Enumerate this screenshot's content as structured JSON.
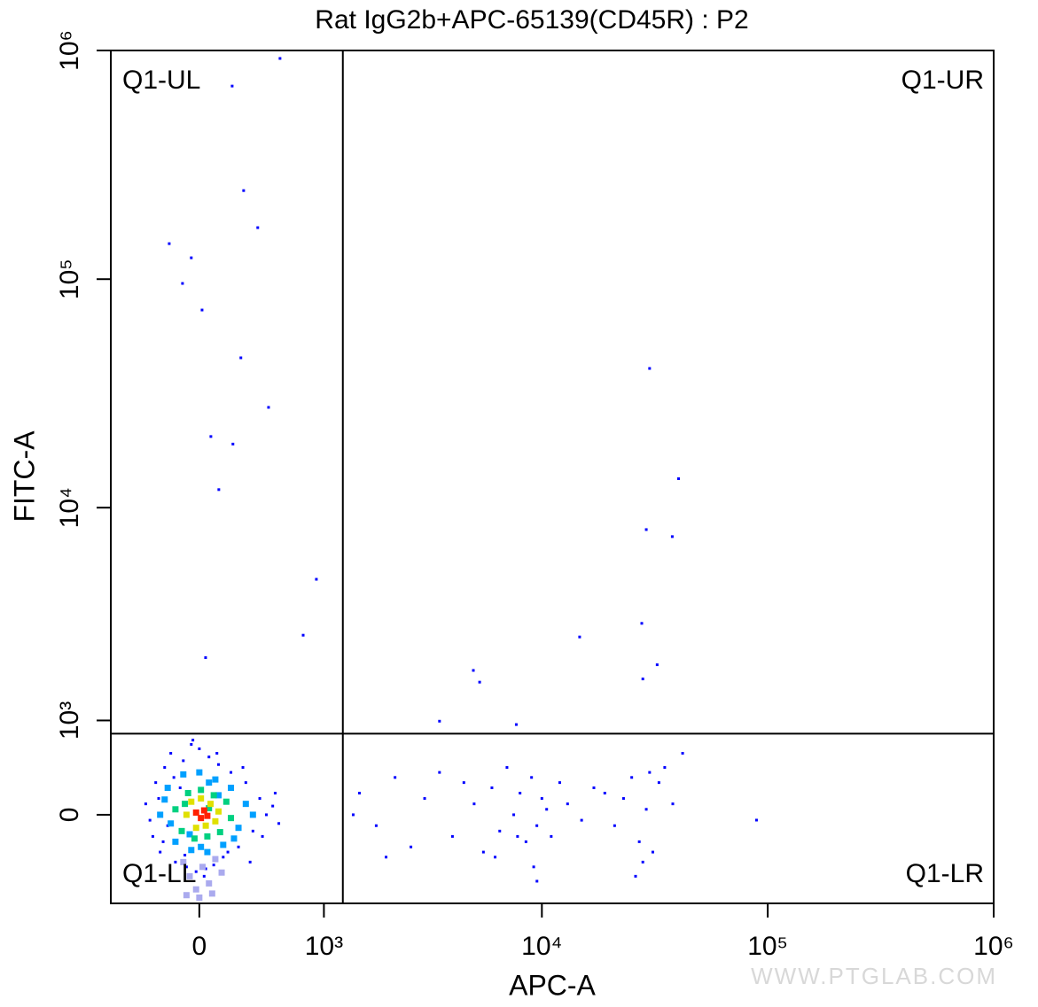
{
  "chart_data": {
    "type": "scatter",
    "title": "Rat IgG2b+APC-65139(CD45R) : P2",
    "x_label": "APC-A",
    "y_label": "FITC-A",
    "watermark": "WWW.PTGLAB.COM",
    "xscale": "biexponential",
    "yscale": "biexponential",
    "xlim": [
      -628,
      1000000
    ],
    "ylim": [
      -924,
      1000000
    ],
    "xticks": [
      0,
      {
        "value": 1000,
        "label": "10³"
      },
      {
        "value": 10000,
        "label": "10⁴"
      },
      {
        "value": 100000,
        "label": "10⁵"
      },
      {
        "value": 1000000,
        "label": "10⁶"
      }
    ],
    "yticks": [
      0,
      {
        "value": 1000,
        "label": "10³"
      },
      {
        "value": 10000,
        "label": "10⁴"
      },
      {
        "value": 100000,
        "label": "10⁵"
      },
      {
        "value": 1000000,
        "label": "10⁶"
      }
    ],
    "gate": {
      "x": 1246,
      "y": 829
    },
    "quadrants": {
      "ul": "Q1-UL",
      "ur": "Q1-UR",
      "ll": "Q1-LL",
      "lr": "Q1-LR"
    },
    "series": [
      {
        "color": "#0000ff",
        "x": [
          560,
          208,
          285,
          385,
          -50,
          -105,
          17,
          266,
          467,
          72,
          213,
          122,
          913,
          773,
          39,
          -190,
          30000,
          40300,
          29000,
          37800,
          14700,
          27700,
          32400,
          28000,
          4960,
          5290,
          3500,
          89200,
          9510,
          7700,
          -350,
          -300,
          -280,
          -250,
          -220,
          -200,
          -180,
          -150,
          -120,
          -100,
          -80,
          -50,
          -20,
          0,
          30,
          60,
          90,
          120,
          150,
          200,
          250,
          300,
          350,
          400,
          450,
          500,
          550,
          -320,
          -260,
          -160,
          40,
          180,
          280,
          420,
          520,
          -230,
          -90,
          110,
          330,
          -40,
          1500,
          1800,
          2200,
          2600,
          3000,
          3500,
          4000,
          4500,
          5000,
          5500,
          6000,
          6500,
          7000,
          7500,
          8000,
          8500,
          9000,
          9500,
          10000,
          11000,
          12000,
          13000,
          15000,
          17000,
          19000,
          21000,
          23000,
          25000,
          27000,
          29000,
          31000,
          33000,
          35000,
          38000,
          42000,
          6200,
          7800,
          9200,
          10500,
          26000,
          28000,
          30000,
          2000,
          1400
        ],
        "y": [
          923000,
          699000,
          244000,
          168000,
          124000,
          95800,
          73300,
          45300,
          27500,
          20500,
          19000,
          12000,
          4830,
          2700,
          2120,
          143000,
          40700,
          13400,
          8010,
          7460,
          2650,
          3060,
          1960,
          1670,
          1840,
          1610,
          990,
          -49,
          -655,
          945,
          100,
          -200,
          300,
          -350,
          450,
          -100,
          600,
          -450,
          250,
          520,
          -500,
          700,
          -550,
          650,
          -600,
          560,
          -480,
          480,
          -400,
          400,
          -300,
          300,
          -150,
          150,
          0,
          80,
          -80,
          -50,
          150,
          350,
          -520,
          -350,
          450,
          -200,
          200,
          -250,
          -380,
          600,
          -450,
          750,
          200,
          -100,
          350,
          -300,
          150,
          400,
          -200,
          300,
          100,
          -350,
          250,
          -150,
          450,
          0,
          200,
          -250,
          350,
          -100,
          150,
          -200,
          300,
          100,
          -50,
          250,
          200,
          -100,
          150,
          350,
          -250,
          50,
          -350,
          300,
          450,
          100,
          600,
          -400,
          -200,
          -500,
          50,
          -600,
          -450,
          400,
          -400,
          0
        ]
      },
      {
        "color": "#aaaaee",
        "x": [
          -100,
          -60,
          -20,
          20,
          60,
          100,
          140,
          -80,
          0,
          80
        ],
        "y": [
          -450,
          -600,
          -750,
          -500,
          -680,
          -420,
          -560,
          -820,
          -850,
          -800
        ]
      },
      {
        "color": "#00a0ff",
        "x": [
          -250,
          -200,
          -150,
          -100,
          -50,
          0,
          50,
          100,
          150,
          200,
          250,
          300,
          350,
          -180,
          120,
          -60,
          60,
          220,
          -220,
          10
        ],
        "y": [
          0,
          250,
          -250,
          380,
          -330,
          400,
          -350,
          330,
          -280,
          250,
          -120,
          100,
          0,
          -80,
          180,
          -180,
          300,
          -220,
          140,
          -300
        ]
      },
      {
        "color": "#00d080",
        "x": [
          -150,
          -110,
          -70,
          -30,
          10,
          50,
          90,
          130,
          170,
          200,
          -90,
          60
        ],
        "y": [
          50,
          -150,
          200,
          -220,
          230,
          -200,
          180,
          -160,
          120,
          -30,
          100,
          60
        ]
      },
      {
        "color": "#e0e000",
        "x": [
          -80,
          -50,
          -20,
          10,
          40,
          70,
          100,
          120
        ],
        "y": [
          0,
          120,
          -120,
          150,
          -100,
          100,
          -60,
          30
        ]
      },
      {
        "color": "#ff2000",
        "x": [
          -20,
          10,
          30,
          50
        ],
        "y": [
          20,
          -30,
          40,
          -10
        ]
      }
    ]
  }
}
